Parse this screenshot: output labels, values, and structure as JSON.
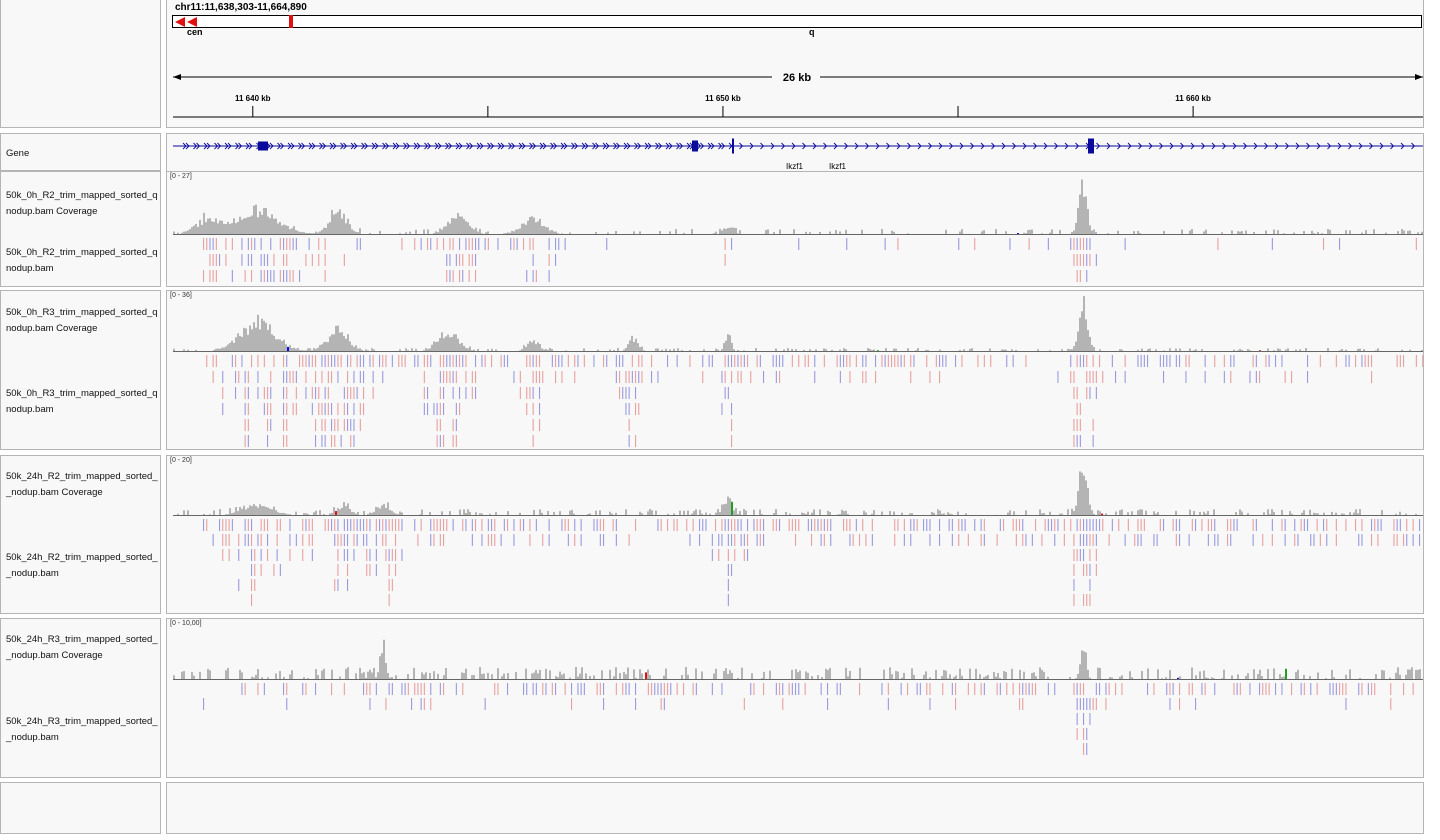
{
  "locus": {
    "text": "chr11:11,638,303-11,664,890",
    "start": 11638303,
    "end": 11664890
  },
  "ideogram": {
    "centromere_label": "cen",
    "arm_label": "q"
  },
  "ruler": {
    "span_label": "26 kb",
    "ticks": [
      {
        "pos": 11640000,
        "label": "11 640 kb"
      },
      {
        "pos": 11645000,
        "label": ""
      },
      {
        "pos": 11650000,
        "label": "11 650 kb"
      },
      {
        "pos": 11655000,
        "label": ""
      },
      {
        "pos": 11660000,
        "label": "11 660 kb"
      }
    ]
  },
  "gene_track": {
    "name": "Gene",
    "labels": [
      "Ikzf1",
      "Ikzf1"
    ]
  },
  "tracks": [
    {
      "coverage_name": "50k_0h_R2_trim_mapped_sorted_q\nnodup.bam Coverage",
      "alignment_name": "50k_0h_R2_trim_mapped_sorted_q\nnodup.bam",
      "range": "[0 - 27]"
    },
    {
      "coverage_name": "50k_0h_R3_trim_mapped_sorted_q\nnodup.bam Coverage",
      "alignment_name": "50k_0h_R3_trim_mapped_sorted_q\nnodup.bam",
      "range": "[0 - 36]"
    },
    {
      "coverage_name": "50k_24h_R2_trim_mapped_sorted_\n_nodup.bam Coverage",
      "alignment_name": "50k_24h_R2_trim_mapped_sorted_\n_nodup.bam",
      "range": "[0 - 20]"
    },
    {
      "coverage_name": "50k_24h_R3_trim_mapped_sorted_\n_nodup.bam Coverage",
      "alignment_name": "50k_24h_R3_trim_mapped_sorted_\n_nodup.bam",
      "range": "[0 - 10,00]"
    }
  ],
  "colors": {
    "coverage_bar": "#b4b4b4",
    "forward_read": "#e8a0a0",
    "reverse_read": "#9a9ae0",
    "gene": "#0a0a9c",
    "ideogram_red": "#e01010"
  }
}
